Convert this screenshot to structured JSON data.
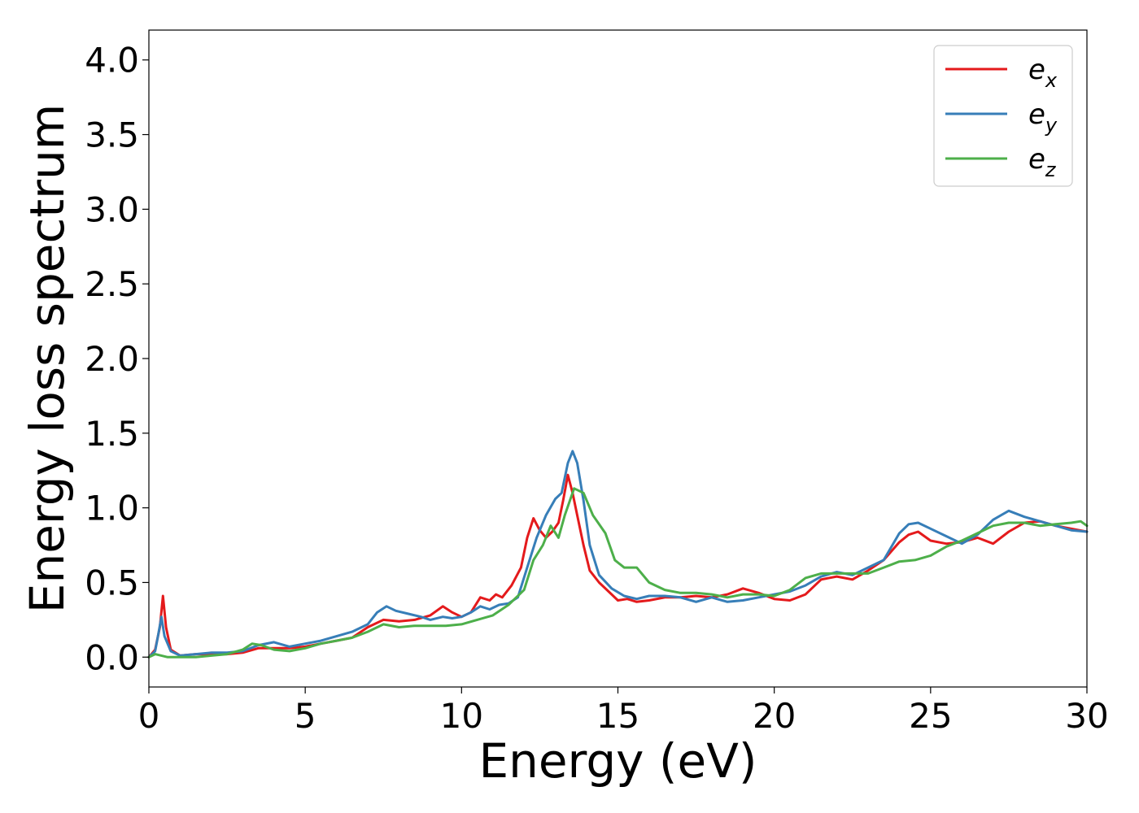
{
  "chart_data": {
    "type": "line",
    "title": "",
    "xlabel": "Energy (eV)",
    "ylabel": "Energy loss spectrum",
    "xlim": [
      0,
      30
    ],
    "ylim": [
      -0.2,
      4.2
    ],
    "xticks": [
      0,
      5,
      10,
      15,
      20,
      25,
      30
    ],
    "xtick_labels": [
      "0",
      "5",
      "10",
      "15",
      "20",
      "25",
      "30"
    ],
    "yticks": [
      0.0,
      0.5,
      1.0,
      1.5,
      2.0,
      2.5,
      3.0,
      3.5,
      4.0
    ],
    "ytick_labels": [
      "0.0",
      "0.5",
      "1.0",
      "1.5",
      "2.0",
      "2.5",
      "3.0",
      "3.5",
      "4.0"
    ],
    "grid": false,
    "legend_position": "top-right",
    "series": [
      {
        "name": "e_x",
        "legend_base": "e",
        "legend_sub": "x",
        "color": "#e41a1c",
        "x": [
          0,
          0.2,
          0.35,
          0.45,
          0.55,
          0.7,
          1.0,
          1.5,
          2.0,
          2.5,
          3.0,
          3.5,
          4.0,
          4.5,
          5.0,
          5.5,
          6.0,
          6.5,
          7.0,
          7.5,
          8.0,
          8.5,
          9.0,
          9.4,
          9.7,
          10.0,
          10.3,
          10.6,
          10.9,
          11.1,
          11.3,
          11.6,
          11.9,
          12.1,
          12.3,
          12.5,
          12.7,
          12.9,
          13.1,
          13.25,
          13.4,
          13.55,
          13.7,
          13.9,
          14.1,
          14.4,
          14.8,
          15.0,
          15.3,
          15.6,
          16.0,
          16.5,
          17.0,
          17.5,
          18.0,
          18.5,
          19.0,
          19.5,
          20.0,
          20.5,
          21.0,
          21.5,
          22.0,
          22.5,
          23.0,
          23.5,
          24.0,
          24.3,
          24.6,
          25.0,
          25.5,
          26.0,
          26.5,
          27.0,
          27.5,
          28.0,
          28.5,
          29.0,
          29.5,
          30.0
        ],
        "y": [
          0.0,
          0.05,
          0.2,
          0.41,
          0.2,
          0.05,
          0.01,
          0.02,
          0.02,
          0.02,
          0.03,
          0.06,
          0.06,
          0.06,
          0.07,
          0.09,
          0.11,
          0.13,
          0.2,
          0.25,
          0.24,
          0.25,
          0.28,
          0.34,
          0.3,
          0.27,
          0.3,
          0.4,
          0.38,
          0.42,
          0.4,
          0.48,
          0.6,
          0.8,
          0.93,
          0.85,
          0.8,
          0.84,
          0.9,
          1.05,
          1.22,
          1.1,
          0.95,
          0.75,
          0.58,
          0.5,
          0.42,
          0.38,
          0.39,
          0.37,
          0.38,
          0.4,
          0.4,
          0.41,
          0.4,
          0.42,
          0.46,
          0.43,
          0.39,
          0.38,
          0.42,
          0.52,
          0.54,
          0.52,
          0.58,
          0.65,
          0.77,
          0.82,
          0.84,
          0.78,
          0.76,
          0.77,
          0.8,
          0.76,
          0.84,
          0.9,
          0.91,
          0.88,
          0.86,
          0.84
        ]
      },
      {
        "name": "e_y",
        "legend_base": "e",
        "legend_sub": "y",
        "color": "#377eb8",
        "x": [
          0,
          0.2,
          0.3,
          0.4,
          0.5,
          0.7,
          1.0,
          1.5,
          2.0,
          2.5,
          3.0,
          3.5,
          4.0,
          4.5,
          5.0,
          5.5,
          6.0,
          6.5,
          7.0,
          7.3,
          7.6,
          7.9,
          8.3,
          8.7,
          9.0,
          9.4,
          9.7,
          10.0,
          10.3,
          10.6,
          10.9,
          11.2,
          11.5,
          11.8,
          12.1,
          12.4,
          12.7,
          13.0,
          13.2,
          13.4,
          13.55,
          13.7,
          13.9,
          14.1,
          14.4,
          14.8,
          15.2,
          15.6,
          16.0,
          16.5,
          17.0,
          17.5,
          18.0,
          18.5,
          19.0,
          19.5,
          20.0,
          20.5,
          21.0,
          21.5,
          22.0,
          22.5,
          23.0,
          23.5,
          24.0,
          24.3,
          24.6,
          25.0,
          25.5,
          26.0,
          26.5,
          27.0,
          27.5,
          28.0,
          28.5,
          29.0,
          29.5,
          30.0
        ],
        "y": [
          0.0,
          0.04,
          0.15,
          0.27,
          0.14,
          0.04,
          0.01,
          0.02,
          0.03,
          0.03,
          0.04,
          0.08,
          0.1,
          0.07,
          0.09,
          0.11,
          0.14,
          0.17,
          0.22,
          0.3,
          0.34,
          0.31,
          0.29,
          0.27,
          0.25,
          0.27,
          0.26,
          0.27,
          0.3,
          0.34,
          0.32,
          0.35,
          0.36,
          0.4,
          0.6,
          0.8,
          0.95,
          1.06,
          1.1,
          1.3,
          1.38,
          1.3,
          1.05,
          0.75,
          0.55,
          0.46,
          0.41,
          0.39,
          0.41,
          0.41,
          0.4,
          0.37,
          0.4,
          0.37,
          0.38,
          0.4,
          0.42,
          0.44,
          0.48,
          0.54,
          0.57,
          0.55,
          0.6,
          0.65,
          0.83,
          0.89,
          0.9,
          0.86,
          0.81,
          0.76,
          0.82,
          0.92,
          0.98,
          0.94,
          0.91,
          0.88,
          0.85,
          0.84
        ]
      },
      {
        "name": "e_z",
        "legend_base": "e",
        "legend_sub": "z",
        "color": "#4daf4a",
        "x": [
          0,
          0.2,
          0.4,
          0.6,
          1.0,
          1.5,
          2.0,
          2.5,
          3.0,
          3.3,
          3.6,
          4.0,
          4.5,
          5.0,
          5.5,
          6.0,
          6.5,
          7.0,
          7.5,
          8.0,
          8.5,
          9.0,
          9.5,
          10.0,
          10.5,
          11.0,
          11.5,
          12.0,
          12.3,
          12.6,
          12.85,
          13.1,
          13.3,
          13.6,
          13.9,
          14.2,
          14.6,
          14.9,
          15.2,
          15.6,
          16.0,
          16.5,
          17.0,
          17.5,
          18.0,
          18.5,
          19.0,
          19.5,
          20.0,
          20.5,
          21.0,
          21.5,
          22.0,
          22.5,
          23.0,
          23.5,
          24.0,
          24.5,
          25.0,
          25.5,
          26.0,
          26.5,
          27.0,
          27.5,
          28.0,
          28.5,
          29.0,
          29.5,
          29.8,
          30.0
        ],
        "y": [
          0.0,
          0.02,
          0.01,
          0.0,
          0.0,
          0.0,
          0.01,
          0.02,
          0.05,
          0.09,
          0.08,
          0.05,
          0.04,
          0.06,
          0.09,
          0.11,
          0.13,
          0.17,
          0.22,
          0.2,
          0.21,
          0.21,
          0.21,
          0.22,
          0.25,
          0.28,
          0.35,
          0.45,
          0.65,
          0.75,
          0.88,
          0.8,
          0.95,
          1.13,
          1.1,
          0.95,
          0.83,
          0.65,
          0.6,
          0.6,
          0.5,
          0.45,
          0.43,
          0.43,
          0.42,
          0.4,
          0.42,
          0.42,
          0.41,
          0.45,
          0.53,
          0.56,
          0.56,
          0.56,
          0.56,
          0.6,
          0.64,
          0.65,
          0.68,
          0.74,
          0.78,
          0.83,
          0.88,
          0.9,
          0.9,
          0.88,
          0.89,
          0.9,
          0.91,
          0.88
        ]
      }
    ]
  }
}
